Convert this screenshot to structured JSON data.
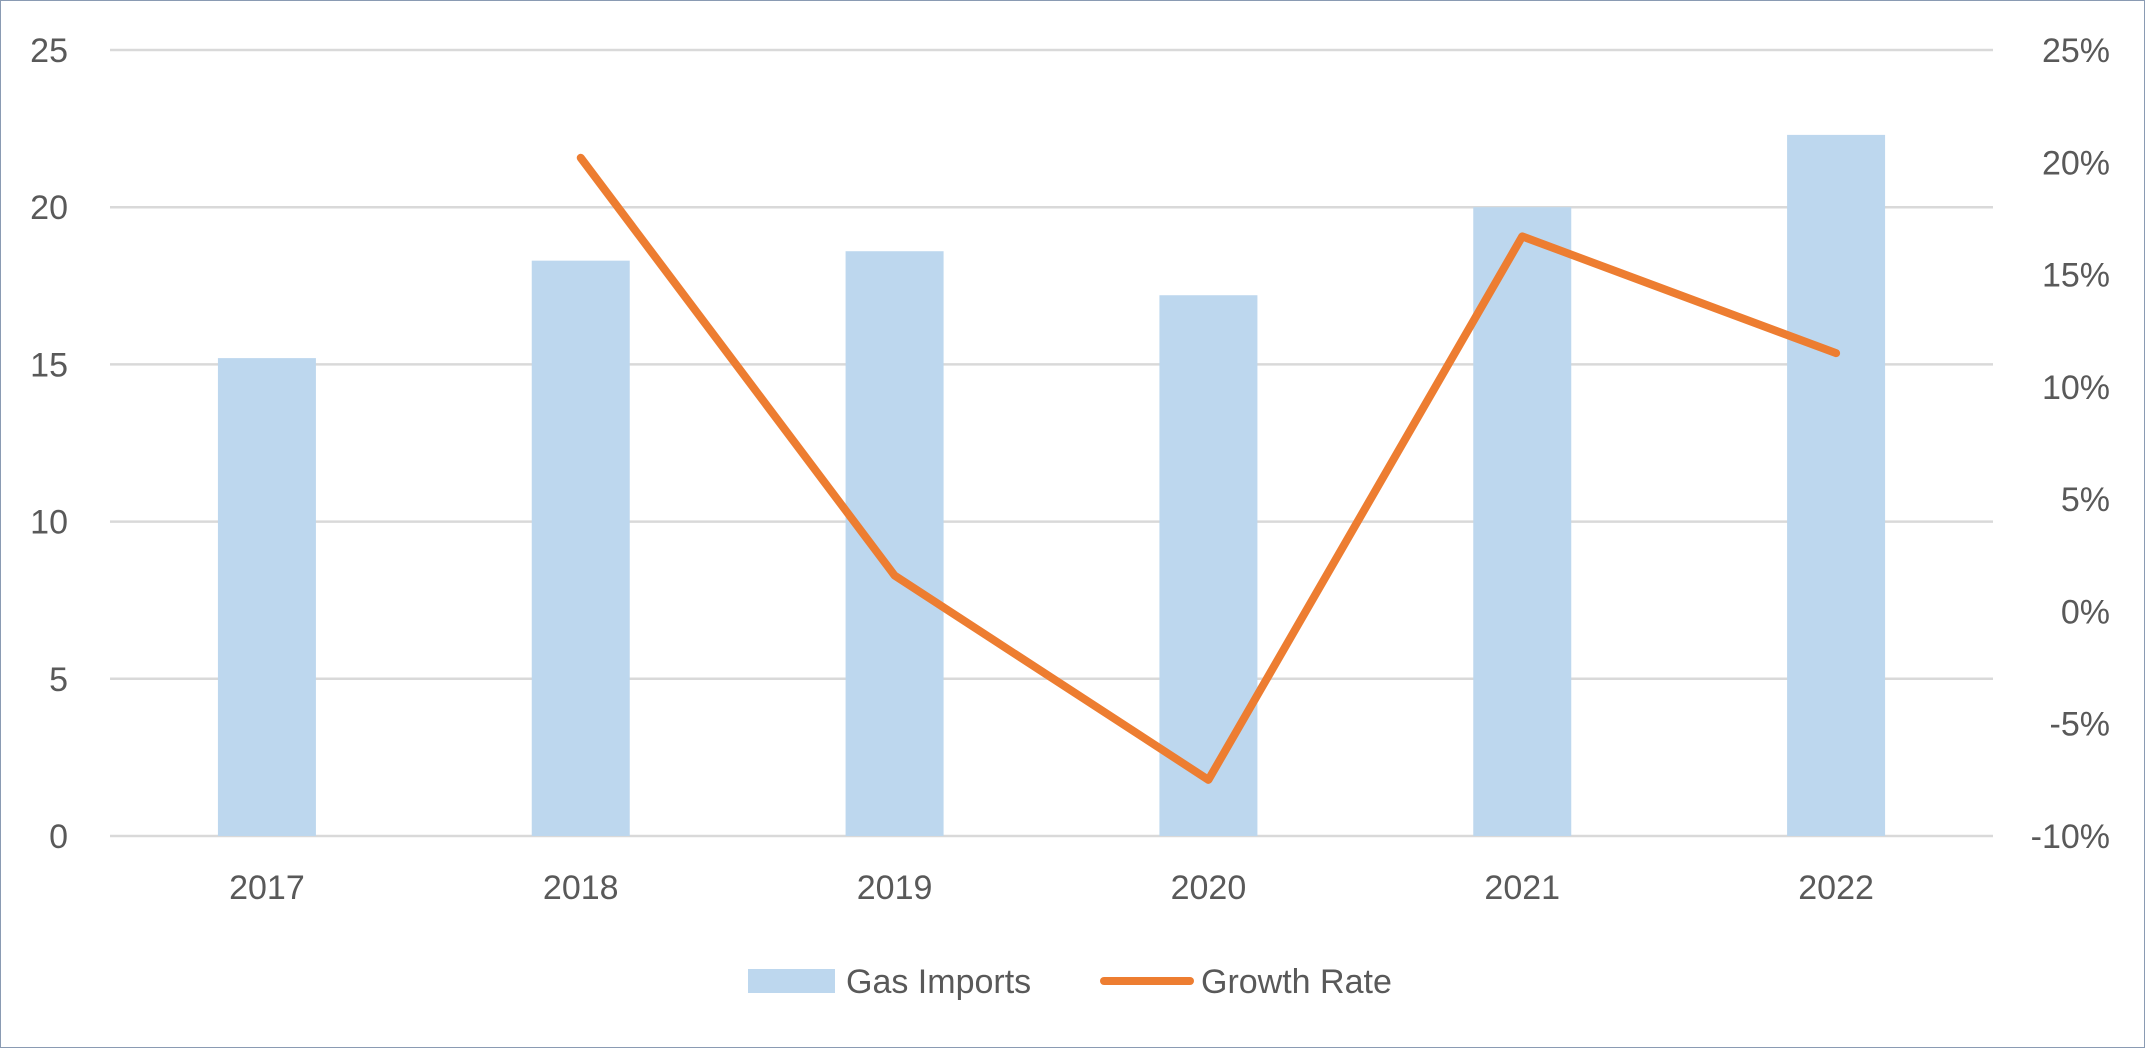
{
  "chart_data": {
    "type": "bar",
    "categories": [
      "2017",
      "2018",
      "2019",
      "2020",
      "2021",
      "2022"
    ],
    "series": [
      {
        "name": "Gas Imports",
        "type": "bar",
        "axis": "left",
        "color": "#bdd7ee",
        "values": [
          15.2,
          18.3,
          18.6,
          17.2,
          20.0,
          22.3
        ]
      },
      {
        "name": "Growth Rate",
        "type": "line",
        "axis": "right",
        "color": "#ed7d31",
        "values": [
          null,
          20.2,
          1.6,
          -7.5,
          16.7,
          11.5
        ]
      }
    ],
    "y_left": {
      "min": 0,
      "max": 25,
      "step": 5,
      "ticks": [
        "0",
        "5",
        "10",
        "15",
        "20",
        "25"
      ]
    },
    "y_right": {
      "min": -10,
      "max": 25,
      "step": 5,
      "ticks": [
        "-10%",
        "-5%",
        "0%",
        "5%",
        "10%",
        "15%",
        "20%",
        "25%"
      ]
    },
    "grid": true,
    "legend": "bottom-center",
    "title": "",
    "xlabel": "",
    "ylabel": ""
  }
}
